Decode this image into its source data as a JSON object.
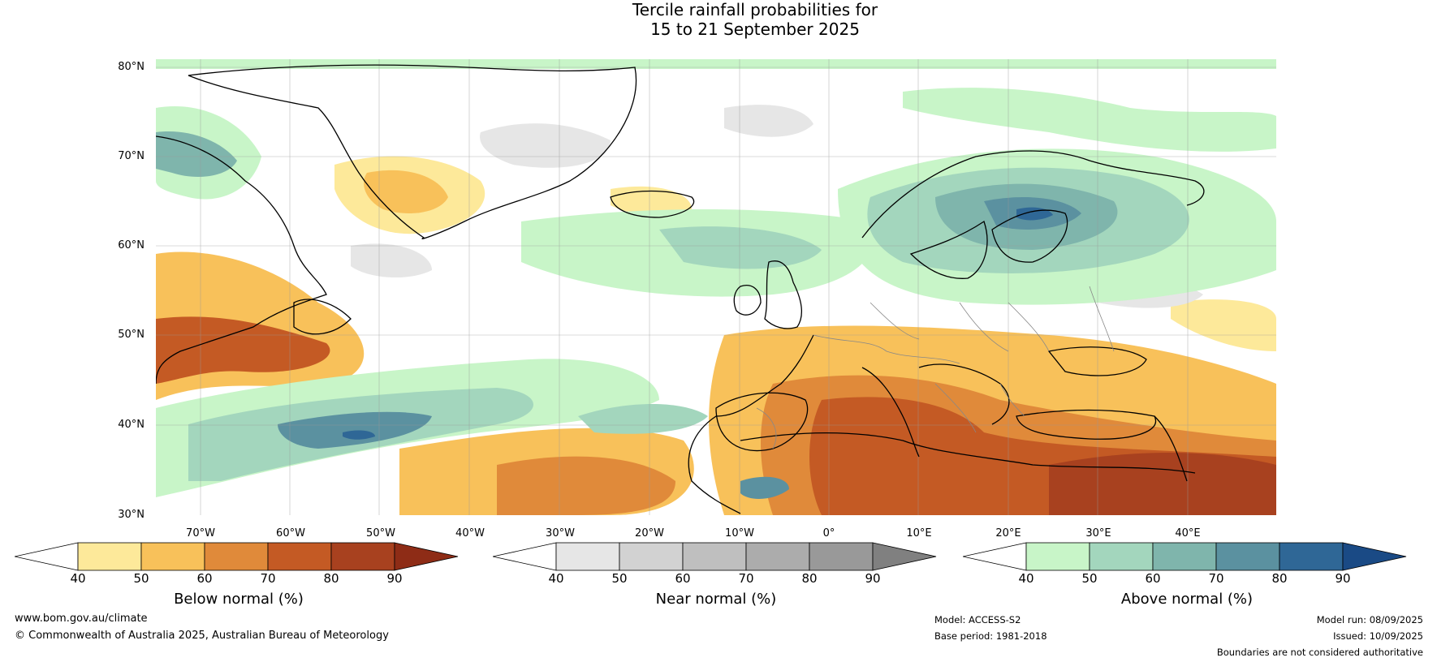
{
  "title": {
    "line1": "Tercile rainfall probabilities for",
    "line2": "15 to 21 September 2025"
  },
  "map": {
    "lat_labels": [
      "80°N",
      "70°N",
      "60°N",
      "50°N",
      "40°N",
      "30°N"
    ],
    "lon_labels": [
      "70°W",
      "60°W",
      "50°W",
      "40°W",
      "30°W",
      "20°W",
      "10°W",
      "0°",
      "10°E",
      "20°E",
      "30°E",
      "40°E"
    ]
  },
  "colorbars": [
    {
      "label": "Below normal (%)",
      "ticks": [
        "40",
        "50",
        "60",
        "70",
        "80",
        "90"
      ],
      "colors": [
        "#ffffff",
        "#fde99a",
        "#f8c15a",
        "#e08a3a",
        "#c45a24",
        "#a8411f",
        "#8e2c16"
      ]
    },
    {
      "label": "Near normal (%)",
      "ticks": [
        "40",
        "50",
        "60",
        "70",
        "80",
        "90"
      ],
      "colors": [
        "#ffffff",
        "#e6e6e6",
        "#d2d2d2",
        "#bfbfbf",
        "#acacac",
        "#999999",
        "#808080"
      ]
    },
    {
      "label": "Above normal (%)",
      "ticks": [
        "40",
        "50",
        "60",
        "70",
        "80",
        "90"
      ],
      "colors": [
        "#ffffff",
        "#c8f5c8",
        "#a3d6bd",
        "#7fb5ac",
        "#5b91a0",
        "#2f6796",
        "#1a4a85"
      ]
    }
  ],
  "footer": {
    "website": "www.bom.gov.au/climate",
    "copyright": "© Commonwealth of Australia 2025, Australian Bureau of Meteorology",
    "model": "Model: ACCESS-S2",
    "base_period": "Base period: 1981-2018",
    "model_run": "Model run: 08/09/2025",
    "issued": "Issued: 10/09/2025",
    "disclaimer": "Boundaries are not considered authoritative"
  }
}
